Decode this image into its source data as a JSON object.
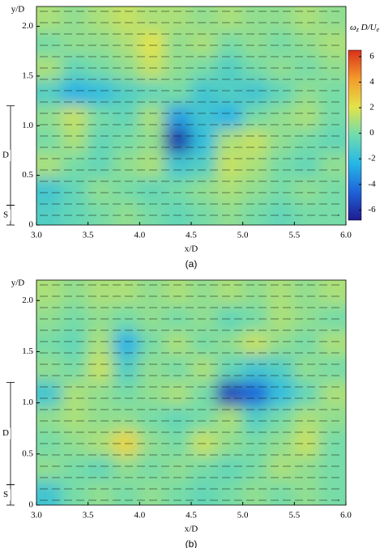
{
  "chart_data": [
    {
      "type": "heatmap",
      "caption": "(a)",
      "x_label": "x/D",
      "y_label": "y/D",
      "xlim": [
        3.0,
        6.0
      ],
      "ylim": [
        0,
        2.2
      ],
      "xticks": [
        {
          "value": 3,
          "label": "3.0"
        },
        3.5,
        {
          "value": 4,
          "label": "4.0"
        },
        4.5,
        {
          "value": 5,
          "label": "5.0"
        },
        5.5,
        {
          "value": 6,
          "label": "6.0"
        }
      ],
      "yticks": [
        0,
        0.5,
        {
          "value": 1,
          "label": "1.0"
        },
        1.5,
        {
          "value": 2,
          "label": "2.0"
        }
      ],
      "x": [
        3.125,
        3.375,
        3.625,
        3.875,
        4.125,
        4.375,
        4.625,
        4.875,
        5.125,
        5.375,
        5.625,
        5.875
      ],
      "y": [
        0.12,
        0.37,
        0.61,
        0.86,
        1.1,
        1.34,
        1.59,
        1.83,
        2.08
      ],
      "z": [
        [
          -1,
          -0.5,
          0,
          0.5,
          0,
          -0.5,
          0,
          0.5,
          0,
          -0.5,
          0,
          0
        ],
        [
          -1.5,
          -0.5,
          0.5,
          0,
          -0.5,
          0,
          0.5,
          1,
          0.5,
          0,
          0.5,
          0
        ],
        [
          1,
          0,
          -0.5,
          0.5,
          1,
          -1.5,
          -1,
          1.5,
          1,
          0,
          -0.5,
          0.5
        ],
        [
          0,
          1,
          -0.5,
          0,
          0.5,
          -6,
          -2,
          1,
          1.5,
          0.5,
          0,
          -0.5
        ],
        [
          0.5,
          1.5,
          0,
          -0.5,
          1,
          -3,
          -1.5,
          -2.5,
          0,
          0.5,
          1,
          0
        ],
        [
          -1,
          -2.5,
          -2,
          -1,
          -0.5,
          0,
          -1.5,
          -1,
          -1.5,
          -0.5,
          0.5,
          0
        ],
        [
          1,
          -0.5,
          0,
          0.5,
          1.5,
          0.5,
          0,
          -1,
          0,
          0.5,
          0,
          0.5
        ],
        [
          0,
          0.5,
          0.5,
          1,
          2,
          0.5,
          1,
          0,
          0.5,
          0,
          0.5,
          1
        ],
        [
          1,
          0.5,
          1,
          1.5,
          1,
          1,
          0.5,
          1,
          0.5,
          0.5,
          1,
          0.5
        ]
      ],
      "colormap": [
        "#1f1a8f",
        "#1f63d9",
        "#25b7e6",
        "#6fdcae",
        "#e3e34a",
        "#f39a2b",
        "#d9301c"
      ],
      "clim": [
        -6.8,
        6.5
      ],
      "cticks": [
        -6,
        -4,
        -2,
        0,
        2,
        4,
        6
      ],
      "colorbar_label": [
        {
          "text": "ω"
        },
        {
          "text": "z",
          "sub": true
        },
        {
          "text": " D/U"
        },
        {
          "text": "e",
          "sub": true
        }
      ],
      "annotations": [
        {
          "text": "D",
          "from": 0.2,
          "to": 1.2
        },
        {
          "text": "S",
          "from": 0,
          "to": 0.2
        }
      ]
    },
    {
      "type": "heatmap",
      "caption": "(b)",
      "x_label": "x/D",
      "y_label": "y/D",
      "xlim": [
        3.0,
        6.0
      ],
      "ylim": [
        0,
        2.2
      ],
      "xticks": [
        {
          "value": 3,
          "label": "3.0"
        },
        3.5,
        {
          "value": 4,
          "label": "4.0"
        },
        4.5,
        {
          "value": 5,
          "label": "5.0"
        },
        5.5,
        {
          "value": 6,
          "label": "6.0"
        }
      ],
      "yticks": [
        0,
        0.5,
        {
          "value": 1,
          "label": "1.0"
        },
        1.5,
        {
          "value": 2,
          "label": "2.0"
        }
      ],
      "x": [
        3.125,
        3.375,
        3.625,
        3.875,
        4.125,
        4.375,
        4.625,
        4.875,
        5.125,
        5.375,
        5.625,
        5.875
      ],
      "y": [
        0.12,
        0.37,
        0.61,
        0.86,
        1.1,
        1.34,
        1.59,
        1.83,
        2.08
      ],
      "z": [
        [
          -1.5,
          0,
          0.5,
          0,
          0.5,
          0,
          -0.5,
          0,
          0.5,
          0,
          0.5,
          0
        ],
        [
          0.5,
          0,
          -0.5,
          0.5,
          0,
          0.5,
          0,
          -0.5,
          0,
          1,
          0.5,
          0
        ],
        [
          0,
          0.5,
          1,
          2.5,
          0.5,
          0,
          1.5,
          0.5,
          0,
          0.5,
          1.5,
          0
        ],
        [
          0.5,
          1,
          0.5,
          0.5,
          0,
          -0.5,
          0,
          1,
          -1,
          0,
          1,
          0.5
        ],
        [
          -1.5,
          1,
          0.5,
          0,
          0.5,
          1,
          0,
          -5.5,
          -4.5,
          -2,
          -0.5,
          1
        ],
        [
          0.5,
          0,
          1.5,
          -1,
          0.5,
          0,
          1,
          -0.5,
          -1.5,
          -1,
          0.5,
          0
        ],
        [
          0,
          -0.5,
          1,
          -2.5,
          0,
          1,
          0,
          0.5,
          1.5,
          0.5,
          0,
          1
        ],
        [
          0.5,
          0,
          0.5,
          0,
          0.5,
          0,
          0.5,
          -0.5,
          0,
          1,
          0.5,
          0
        ],
        [
          1,
          0.5,
          1,
          1,
          0.5,
          1,
          0.5,
          1,
          0.5,
          1,
          0.5,
          1
        ]
      ],
      "colormap": [
        "#1f1a8f",
        "#1f63d9",
        "#25b7e6",
        "#6fdcae",
        "#e3e34a",
        "#f39a2b",
        "#d9301c"
      ],
      "clim": [
        -6.8,
        6.5
      ],
      "annotations": [
        {
          "text": "D",
          "from": 0.2,
          "to": 1.2
        },
        {
          "text": "S",
          "from": 0,
          "to": 0.2
        }
      ]
    }
  ]
}
